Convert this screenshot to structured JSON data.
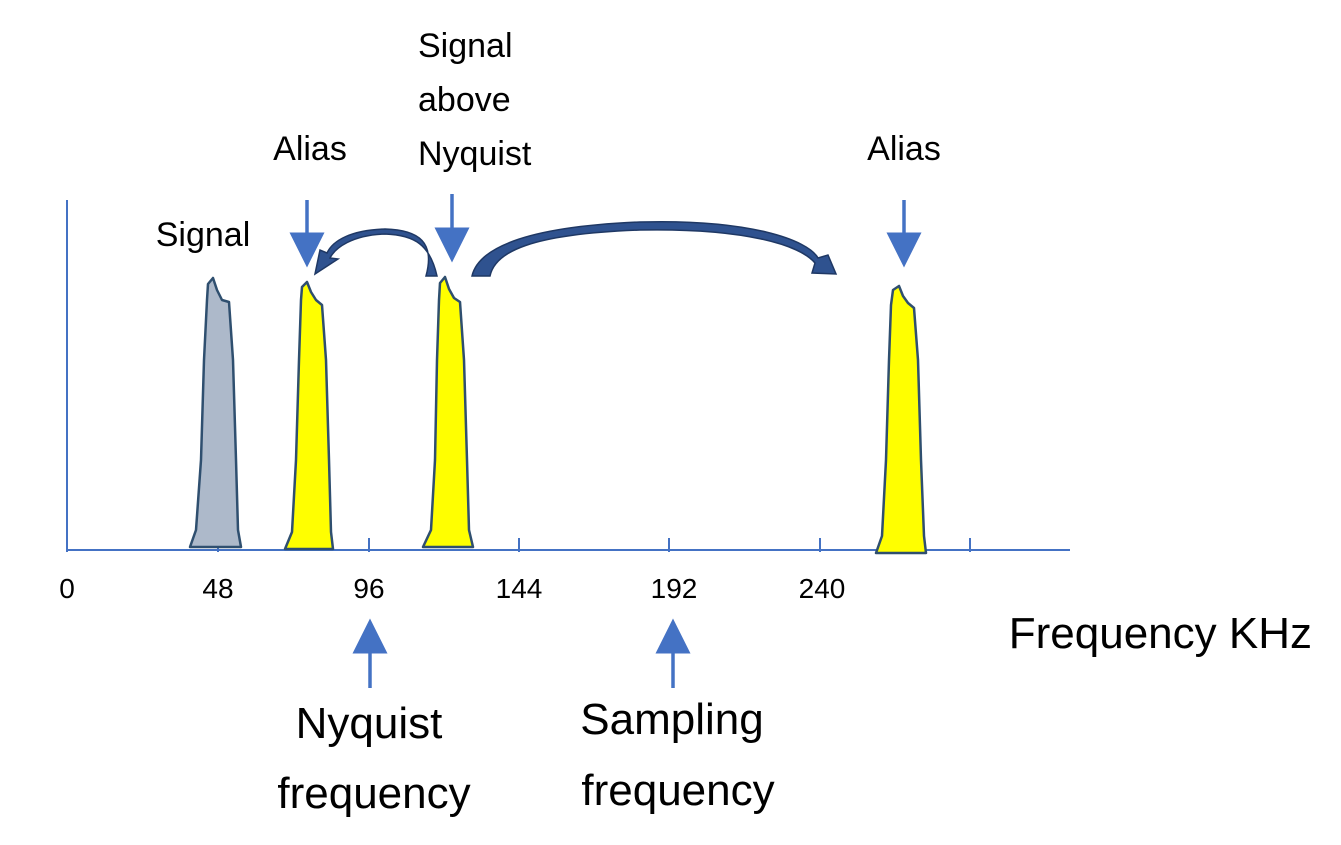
{
  "colors": {
    "axis": "#4472c4",
    "arrow": "#4472c4",
    "curve_arrow": "#2f528f",
    "signal_fill": "#adb9ca",
    "alias_fill": "#ffff00",
    "peak_outline": "#2f4f6f"
  },
  "axis": {
    "tick_labels": [
      "0",
      "48",
      "96",
      "144",
      "192",
      "240"
    ],
    "unit_label": "Frequency KHz"
  },
  "labels": {
    "signal": "Signal",
    "alias_left": "Alias",
    "alias_right": "Alias",
    "above_nyquist": [
      "Signal",
      "above",
      "Nyquist"
    ],
    "nyquist": [
      "Nyquist",
      "frequency"
    ],
    "sampling": [
      "Sampling",
      "frequency"
    ]
  },
  "peaks": [
    {
      "name": "signal",
      "center_khz": 48,
      "fill": "signal"
    },
    {
      "name": "alias-left",
      "center_khz": 76,
      "fill": "alias"
    },
    {
      "name": "signal-above-nyquist",
      "center_khz": 120,
      "fill": "alias"
    },
    {
      "name": "alias-right",
      "center_khz": 264,
      "fill": "alias"
    }
  ]
}
